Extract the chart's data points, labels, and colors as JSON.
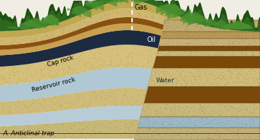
{
  "title": "A. Anticlinal trap",
  "gas_label": "Gas",
  "oil_label": "Oil",
  "water_label": "Water",
  "cap_rock_label": "Cap rock",
  "reservoir_rock_label": "Reservoir rock",
  "figsize": [
    3.78,
    2.04
  ],
  "dpi": 100,
  "bg_color": "#f0ede4",
  "layers": {
    "bottom_sand": "#d4bc82",
    "bottom_sand2": "#c8b07a",
    "water_blue": "#a8c4d0",
    "water_blue2": "#b8d0dc",
    "res_rock": "#d8c488",
    "res_rock2": "#cdb870",
    "oil_dark": "#1a2840",
    "oil_mid": "#243050",
    "caprock_tan": "#c8a860",
    "caprock_brown": "#8b5e1a",
    "caprock_brown2": "#7a4e10",
    "upper_sand": "#d4bc82",
    "upper_sand2": "#c8b07a",
    "surf_tan": "#c8aa6a",
    "veg_dark": "#2a6018",
    "veg_mid": "#3a7828",
    "veg_light": "#4a9030",
    "right_stipple": "#d0bc88",
    "right_brown1": "#8b5010",
    "right_brown2": "#a06020",
    "right_sand": "#d4bc82",
    "right_water": "#a8c4d0",
    "right_blue_gray": "#9ab0be"
  }
}
